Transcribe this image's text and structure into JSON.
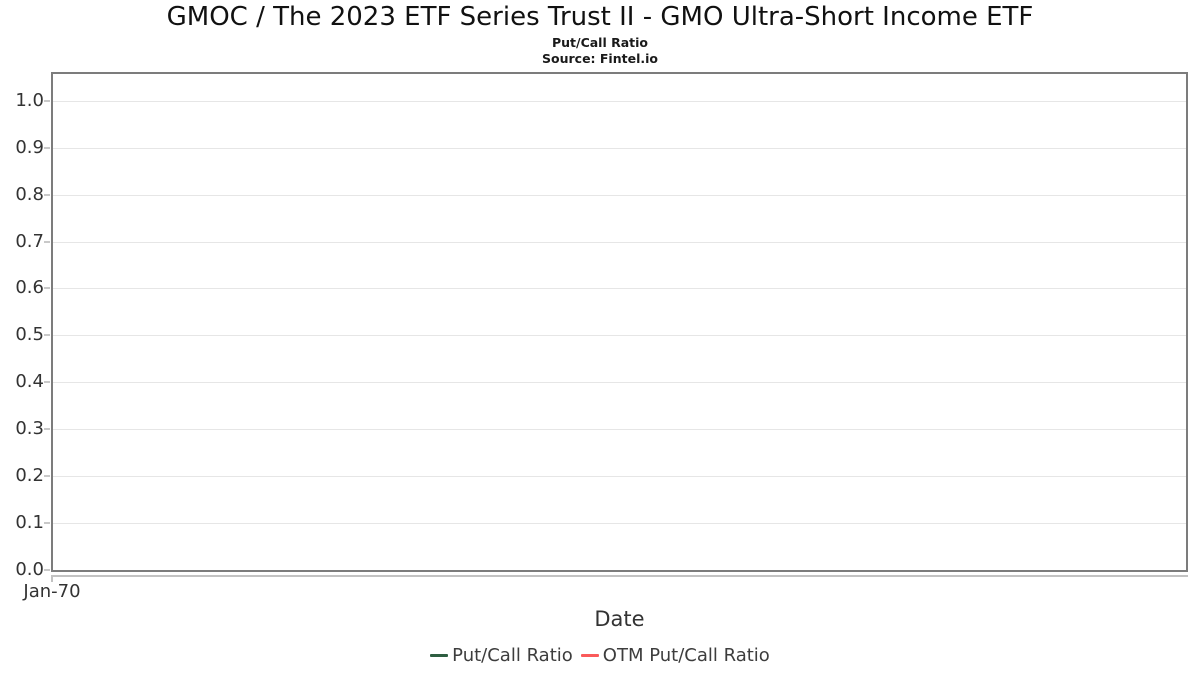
{
  "chart_data": {
    "type": "line",
    "title": "GMOC / The 2023 ETF Series Trust II - GMO Ultra-Short Income ETF",
    "subtitle": "Put/Call Ratio",
    "source": "Source: Fintel.io",
    "xlabel": "Date",
    "ylabel": "",
    "x_ticks": [
      "Jan-70"
    ],
    "ylim": [
      0,
      1.057
    ],
    "ytick_step": 0.1,
    "yticks": [
      {
        "value": 0.0,
        "label": "0.0"
      },
      {
        "value": 0.1,
        "label": "0.1"
      },
      {
        "value": 0.2,
        "label": "0.2"
      },
      {
        "value": 0.3,
        "label": "0.3"
      },
      {
        "value": 0.4,
        "label": "0.4"
      },
      {
        "value": 0.5,
        "label": "0.5"
      },
      {
        "value": 0.6,
        "label": "0.6"
      },
      {
        "value": 0.7,
        "label": "0.7"
      },
      {
        "value": 0.8,
        "label": "0.8"
      },
      {
        "value": 0.9,
        "label": "0.9"
      },
      {
        "value": 1.0,
        "label": "1.0"
      }
    ],
    "grid": "horizontal-only",
    "legend_position": "bottom-center",
    "series": [
      {
        "name": "Put/Call Ratio",
        "color": "#2e5e41",
        "x": [],
        "values": []
      },
      {
        "name": "OTM Put/Call Ratio",
        "color": "#fa5a5a",
        "x": [],
        "values": []
      }
    ],
    "colors": {
      "plot_border": "#7c7c7c",
      "gridline": "#e6e6e6",
      "tick": "#c2c2c2",
      "axis_text": "#333333",
      "title_text": "#111111"
    }
  }
}
